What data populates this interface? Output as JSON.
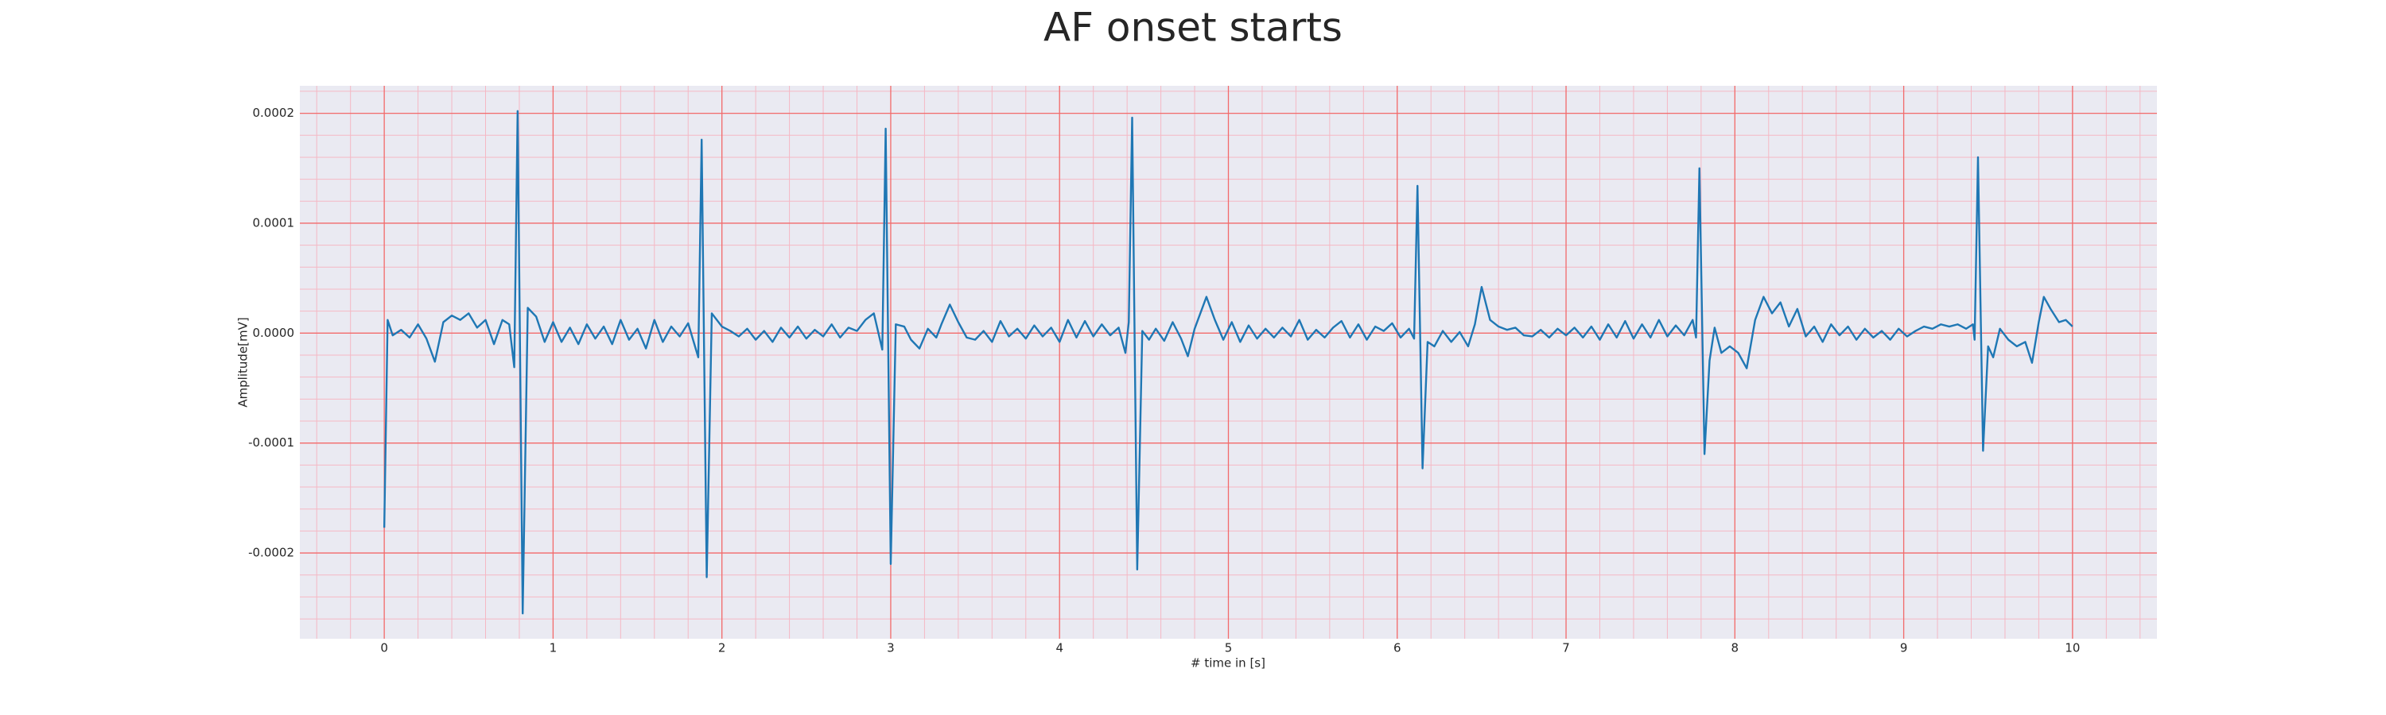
{
  "chart_data": {
    "type": "line",
    "title": "AF onset starts",
    "xlabel": "# time in [s]",
    "ylabel": "Amplitude[mV]",
    "color": "#1f77b4",
    "grid": true,
    "minor_grid": true,
    "xlim": [
      -0.5,
      10.5
    ],
    "ylim": [
      -0.000278,
      0.000225
    ],
    "xticks": [
      0,
      1,
      2,
      3,
      4,
      5,
      6,
      7,
      8,
      9,
      10
    ],
    "yticks": [
      -0.0002,
      -0.0001,
      {
        "value": 0,
        "label": "0.0000"
      },
      0.0001,
      0.0002
    ],
    "x": [
      0,
      0.02,
      0.05,
      0.1,
      0.15,
      0.2,
      0.25,
      0.3,
      0.35,
      0.4,
      0.45,
      0.5,
      0.55,
      0.6,
      0.65,
      0.7,
      0.74,
      0.77,
      0.79,
      0.82,
      0.85,
      0.9,
      0.95,
      1.0,
      1.05,
      1.1,
      1.15,
      1.2,
      1.25,
      1.3,
      1.35,
      1.4,
      1.45,
      1.5,
      1.55,
      1.6,
      1.65,
      1.7,
      1.75,
      1.8,
      1.86,
      1.88,
      1.91,
      1.94,
      2.0,
      2.05,
      2.1,
      2.15,
      2.2,
      2.25,
      2.3,
      2.35,
      2.4,
      2.45,
      2.5,
      2.55,
      2.6,
      2.65,
      2.7,
      2.75,
      2.8,
      2.85,
      2.9,
      2.95,
      2.97,
      3.0,
      3.03,
      3.08,
      3.12,
      3.17,
      3.22,
      3.27,
      3.3,
      3.35,
      3.4,
      3.45,
      3.5,
      3.55,
      3.6,
      3.65,
      3.7,
      3.75,
      3.8,
      3.85,
      3.9,
      3.95,
      4.0,
      4.05,
      4.1,
      4.15,
      4.2,
      4.25,
      4.3,
      4.35,
      4.39,
      4.41,
      4.43,
      4.46,
      4.49,
      4.53,
      4.57,
      4.62,
      4.67,
      4.72,
      4.76,
      4.8,
      4.87,
      4.92,
      4.97,
      5.02,
      5.07,
      5.12,
      5.17,
      5.22,
      5.27,
      5.32,
      5.37,
      5.42,
      5.47,
      5.52,
      5.57,
      5.62,
      5.67,
      5.72,
      5.77,
      5.82,
      5.87,
      5.92,
      5.97,
      6.02,
      6.07,
      6.1,
      6.12,
      6.15,
      6.18,
      6.22,
      6.27,
      6.32,
      6.37,
      6.42,
      6.46,
      6.5,
      6.55,
      6.6,
      6.65,
      6.7,
      6.75,
      6.8,
      6.85,
      6.9,
      6.95,
      7.0,
      7.05,
      7.1,
      7.15,
      7.2,
      7.25,
      7.3,
      7.35,
      7.4,
      7.45,
      7.5,
      7.55,
      7.6,
      7.65,
      7.7,
      7.75,
      7.77,
      7.79,
      7.82,
      7.85,
      7.88,
      7.92,
      7.97,
      8.02,
      8.07,
      8.12,
      8.17,
      8.22,
      8.27,
      8.32,
      8.37,
      8.42,
      8.47,
      8.52,
      8.57,
      8.62,
      8.67,
      8.72,
      8.77,
      8.82,
      8.87,
      8.92,
      8.97,
      9.02,
      9.07,
      9.12,
      9.17,
      9.22,
      9.27,
      9.32,
      9.37,
      9.41,
      9.42,
      9.44,
      9.47,
      9.5,
      9.53,
      9.57,
      9.62,
      9.67,
      9.72,
      9.76,
      9.8,
      9.83,
      9.87,
      9.92,
      9.96,
      10.0
    ],
    "values": [
      -0.000177,
      1.2e-05,
      -2e-06,
      3e-06,
      -4e-06,
      8e-06,
      -5e-06,
      -2.6e-05,
      1e-05,
      1.6e-05,
      1.2e-05,
      1.8e-05,
      5e-06,
      1.2e-05,
      -1e-05,
      1.2e-05,
      8e-06,
      -3.1e-05,
      0.000202,
      -0.000255,
      2.3e-05,
      1.5e-05,
      -8e-06,
      1e-05,
      -8e-06,
      5e-06,
      -1e-05,
      8e-06,
      -5e-06,
      6e-06,
      -1e-05,
      1.2e-05,
      -6e-06,
      4e-06,
      -1.4e-05,
      1.2e-05,
      -8e-06,
      6e-06,
      -3e-06,
      9e-06,
      -2.2e-05,
      0.000176,
      -0.000222,
      1.8e-05,
      6e-06,
      2e-06,
      -3e-06,
      4e-06,
      -6e-06,
      2e-06,
      -8e-06,
      5e-06,
      -4e-06,
      6e-06,
      -5e-06,
      3e-06,
      -3e-06,
      8e-06,
      -4e-06,
      5e-06,
      2e-06,
      1.2e-05,
      1.8e-05,
      -1.5e-05,
      0.000186,
      -0.00021,
      8e-06,
      6e-06,
      -6e-06,
      -1.4e-05,
      4e-06,
      -4e-06,
      8e-06,
      2.6e-05,
      1e-05,
      -4e-06,
      -6e-06,
      2e-06,
      -8e-06,
      1.1e-05,
      -3e-06,
      4e-06,
      -5e-06,
      7e-06,
      -3e-06,
      5e-06,
      -8e-06,
      1.2e-05,
      -4e-06,
      1.1e-05,
      -3e-06,
      8e-06,
      -2e-06,
      5e-06,
      -1.8e-05,
      1e-05,
      0.000196,
      -0.000215,
      2e-06,
      -6e-06,
      4e-06,
      -7e-06,
      1e-05,
      -5e-06,
      -2.1e-05,
      4e-06,
      3.3e-05,
      1.2e-05,
      -6e-06,
      1e-05,
      -8e-06,
      7e-06,
      -5e-06,
      4e-06,
      -4e-06,
      5e-06,
      -3e-06,
      1.2e-05,
      -6e-06,
      3e-06,
      -4e-06,
      5e-06,
      1.1e-05,
      -4e-06,
      8e-06,
      -6e-06,
      6e-06,
      2e-06,
      9e-06,
      -4e-06,
      4e-06,
      -5e-06,
      0.000134,
      -0.000123,
      -8e-06,
      -1.2e-05,
      2e-06,
      -8e-06,
      1e-06,
      -1.2e-05,
      8e-06,
      4.2e-05,
      1.2e-05,
      6e-06,
      3e-06,
      5e-06,
      -2e-06,
      -3e-06,
      3e-06,
      -4e-06,
      4e-06,
      -2e-06,
      5e-06,
      -4e-06,
      6e-06,
      -6e-06,
      8e-06,
      -4e-06,
      1.1e-05,
      -5e-06,
      8e-06,
      -4e-06,
      1.2e-05,
      -3e-06,
      7e-06,
      -2e-06,
      1.2e-05,
      -4e-06,
      0.00015,
      -0.00011,
      -2.5e-05,
      5e-06,
      -1.8e-05,
      -1.2e-05,
      -1.8e-05,
      -3.2e-05,
      1.2e-05,
      3.3e-05,
      1.8e-05,
      2.8e-05,
      6e-06,
      2.2e-05,
      -3e-06,
      6e-06,
      -8e-06,
      8e-06,
      -2e-06,
      6e-06,
      -6e-06,
      4e-06,
      -4e-06,
      2e-06,
      -6e-06,
      4e-06,
      -3e-06,
      2e-06,
      6e-06,
      4e-06,
      8e-06,
      6e-06,
      8e-06,
      4e-06,
      8e-06,
      -6e-06,
      0.00016,
      -0.000107,
      -1.2e-05,
      -2.2e-05,
      4e-06,
      -6e-06,
      -1.2e-05,
      -8e-06,
      -2.7e-05,
      1e-05,
      3.3e-05,
      2.2e-05,
      1e-05,
      1.2e-05,
      6e-06
    ]
  }
}
